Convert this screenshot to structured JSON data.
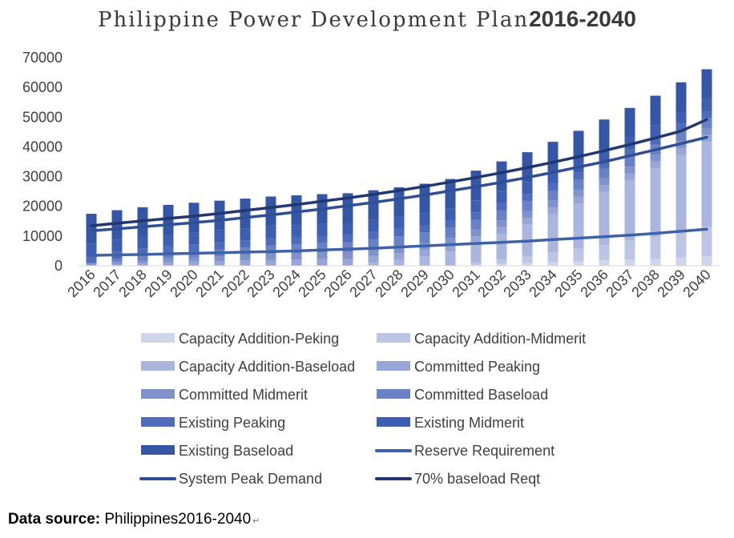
{
  "chart_data": {
    "type": "bar",
    "title": "Philippine Power Development Plan",
    "title_years": "2016-2040",
    "xlabel": "",
    "ylabel": "",
    "ylim": [
      0,
      70000
    ],
    "yticks": [
      0,
      10000,
      20000,
      30000,
      40000,
      50000,
      60000,
      70000
    ],
    "grid": false,
    "legend_position": "bottom",
    "stacked": true,
    "categories": [
      "2016",
      "2017",
      "2018",
      "2019",
      "2020",
      "2021",
      "2022",
      "2023",
      "2024",
      "2025",
      "2026",
      "2027",
      "2028",
      "2029",
      "2030",
      "2031",
      "2032",
      "2033",
      "2034",
      "2035",
      "2036",
      "2037",
      "2038",
      "2039",
      "2040"
    ],
    "series": [
      {
        "name": "Capacity Addition-Peking",
        "kind": "bar",
        "color": "#d0d5ea",
        "values": [
          0,
          0,
          0,
          0,
          0,
          0,
          0,
          0,
          0,
          0,
          0,
          0,
          0,
          0,
          0,
          300,
          600,
          900,
          1200,
          1500,
          1800,
          2100,
          2400,
          2800,
          3200
        ]
      },
      {
        "name": "Capacity Addition-Midmerit",
        "kind": "bar",
        "color": "#bcc5e4",
        "values": [
          0,
          0,
          0,
          0,
          0,
          0,
          0,
          0,
          0,
          0,
          0,
          0,
          0,
          0,
          0,
          800,
          1600,
          2400,
          3300,
          4200,
          5200,
          6300,
          7400,
          8700,
          10000
        ]
      },
      {
        "name": "Capacity Addition-Baseload",
        "kind": "bar",
        "color": "#aab6de",
        "values": [
          0,
          0,
          0,
          0,
          0,
          0,
          0,
          0,
          0,
          0,
          0,
          1000,
          2000,
          3200,
          4800,
          6500,
          8500,
          10500,
          12800,
          15300,
          17800,
          20300,
          23000,
          25800,
          28500
        ]
      },
      {
        "name": "Committed Peaking",
        "kind": "bar",
        "color": "#97a6d6",
        "values": [
          300,
          600,
          900,
          1200,
          1400,
          1600,
          1800,
          2000,
          2100,
          2200,
          2300,
          2300,
          2300,
          2300,
          2300,
          2300,
          2300,
          2300,
          2300,
          2300,
          2300,
          2300,
          2300,
          2300,
          2300
        ]
      },
      {
        "name": "Committed Midmerit",
        "kind": "bar",
        "color": "#7f92cc",
        "values": [
          300,
          700,
          1000,
          1200,
          1400,
          1600,
          1800,
          2000,
          2100,
          2200,
          2300,
          2300,
          2300,
          2300,
          2300,
          2300,
          2300,
          2300,
          2300,
          2300,
          2300,
          2300,
          2300,
          2300,
          2300
        ]
      },
      {
        "name": "Committed Baseload",
        "kind": "bar",
        "color": "#6a81c5",
        "values": [
          400,
          900,
          1300,
          1600,
          1900,
          2200,
          2500,
          2800,
          3000,
          3200,
          3300,
          3300,
          3300,
          3300,
          3300,
          3300,
          3300,
          3300,
          3300,
          3300,
          3300,
          3300,
          3300,
          3300,
          3300
        ]
      },
      {
        "name": "Existing Peaking",
        "kind": "bar",
        "color": "#4f6cbc",
        "values": [
          2500,
          2500,
          2500,
          2500,
          2500,
          2500,
          2500,
          2500,
          2500,
          2500,
          2500,
          2500,
          2500,
          2500,
          2500,
          2500,
          2500,
          2500,
          2500,
          2500,
          2500,
          2500,
          2500,
          2500,
          2500
        ]
      },
      {
        "name": "Existing Midmerit",
        "kind": "bar",
        "color": "#3d5eb2",
        "values": [
          4000,
          4000,
          4000,
          4000,
          4000,
          4000,
          4000,
          4000,
          4000,
          4000,
          4000,
          4000,
          4000,
          4000,
          4000,
          4000,
          4000,
          4000,
          4000,
          4000,
          4000,
          4000,
          4000,
          4000,
          4000
        ]
      },
      {
        "name": "Existing Baseload",
        "kind": "bar",
        "color": "#3556a5",
        "values": [
          10000,
          10000,
          10000,
          10000,
          10000,
          10000,
          10000,
          10000,
          10000,
          10000,
          10000,
          10000,
          10000,
          10000,
          10000,
          10000,
          10000,
          10000,
          10000,
          10000,
          10000,
          10000,
          10000,
          10000,
          10000
        ]
      },
      {
        "name": "Reserve Requirement",
        "kind": "line",
        "color": "#3e62a8",
        "values": [
          3500,
          3650,
          3800,
          4000,
          4200,
          4400,
          4600,
          4800,
          5000,
          5300,
          5600,
          5900,
          6300,
          6700,
          7100,
          7500,
          7900,
          8300,
          8800,
          9300,
          9800,
          10300,
          10900,
          11600,
          12300
        ]
      },
      {
        "name": "System Peak Demand",
        "kind": "line",
        "color": "#2f4f95",
        "values": [
          11800,
          12400,
          13100,
          13800,
          14500,
          15300,
          16200,
          17100,
          18100,
          19100,
          20200,
          21300,
          22500,
          23800,
          25200,
          26600,
          28100,
          29700,
          31400,
          33200,
          35000,
          37000,
          39000,
          41100,
          43200
        ]
      },
      {
        "name": "70% baseload Reqt",
        "kind": "line",
        "color": "#22366f",
        "values": [
          13500,
          14300,
          15100,
          15900,
          16700,
          17600,
          18600,
          19600,
          20600,
          21700,
          22800,
          24000,
          25300,
          26700,
          28200,
          29700,
          31300,
          33000,
          34800,
          36700,
          38700,
          40800,
          43000,
          45300,
          49200
        ]
      }
    ]
  },
  "source": {
    "label": "Data source:",
    "text": " Philippines2016-2040",
    "return_mark": "↵"
  }
}
